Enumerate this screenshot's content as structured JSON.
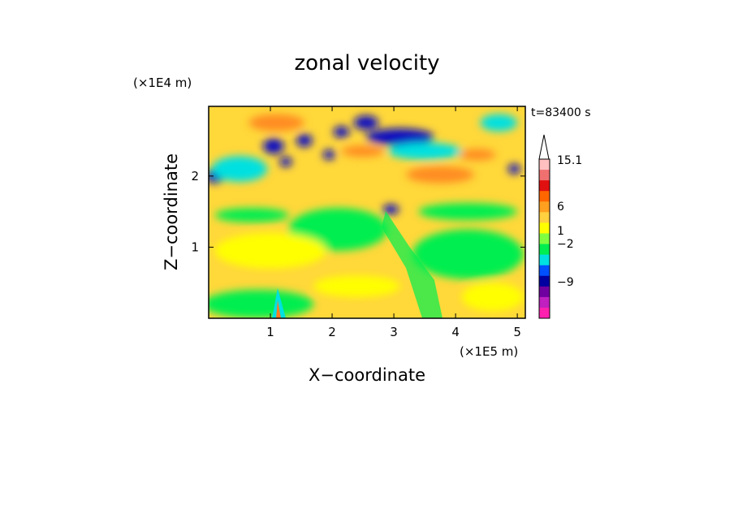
{
  "chart_data": {
    "type": "heatmap",
    "title": "zonal velocity",
    "time_label": "t=83400 s",
    "xlabel": "X−coordinate",
    "ylabel": "Z−coordinate",
    "x_unit": "(×1E5 m)",
    "y_unit": "(×1E4 m)",
    "x_ticks": [
      "1",
      "2",
      "3",
      "4",
      "5"
    ],
    "y_ticks": [
      "1",
      "2"
    ],
    "x_tick_values": [
      1,
      2,
      3,
      4,
      5
    ],
    "y_tick_values": [
      1,
      2
    ],
    "xlim": [
      0,
      5.13
    ],
    "ylim": [
      0,
      2.98
    ],
    "colorbar": {
      "labels": [
        "15.1",
        "6",
        "1",
        "−2",
        "−9"
      ],
      "colors_top_to_bottom": [
        "#ffc0c0",
        "#f07070",
        "#e01010",
        "#ff6600",
        "#ffa020",
        "#ffd040",
        "#ffff00",
        "#80ff40",
        "#00ee50",
        "#00e0e0",
        "#0050ff",
        "#0000a0",
        "#7000a0",
        "#c020c0",
        "#ff20b0"
      ]
    },
    "features": [
      {
        "color": "#1010c0",
        "x": 3.1,
        "y": 2.55,
        "rx": 0.55,
        "rz": 0.12
      },
      {
        "color": "#1010c0",
        "x": 1.05,
        "y": 2.42,
        "rx": 0.17,
        "rz": 0.11
      },
      {
        "color": "#1010c0",
        "x": 1.55,
        "y": 2.5,
        "rx": 0.13,
        "rz": 0.09
      },
      {
        "color": "#1010c0",
        "x": 1.25,
        "y": 2.2,
        "rx": 0.1,
        "rz": 0.07
      },
      {
        "color": "#1010c0",
        "x": 1.95,
        "y": 2.3,
        "rx": 0.1,
        "rz": 0.07
      },
      {
        "color": "#1010c0",
        "x": 2.55,
        "y": 2.75,
        "rx": 0.2,
        "rz": 0.1
      },
      {
        "color": "#1010c0",
        "x": 2.15,
        "y": 2.62,
        "rx": 0.13,
        "rz": 0.08
      },
      {
        "color": "#1010c0",
        "x": 0.1,
        "y": 2.0,
        "rx": 0.16,
        "rz": 0.1
      },
      {
        "color": "#1010c0",
        "x": 2.95,
        "y": 1.53,
        "rx": 0.13,
        "rz": 0.07
      },
      {
        "color": "#1010c0",
        "x": 4.95,
        "y": 2.1,
        "rx": 0.1,
        "rz": 0.07
      },
      {
        "color": "#ff8c20",
        "x": 1.1,
        "y": 2.75,
        "rx": 0.45,
        "rz": 0.12
      },
      {
        "color": "#ff8c20",
        "x": 3.75,
        "y": 2.02,
        "rx": 0.55,
        "rz": 0.12
      },
      {
        "color": "#ff8c20",
        "x": 2.5,
        "y": 2.35,
        "rx": 0.35,
        "rz": 0.08
      },
      {
        "color": "#ff8c20",
        "x": 4.35,
        "y": 2.3,
        "rx": 0.3,
        "rz": 0.08
      },
      {
        "color": "#00e0e0",
        "x": 0.5,
        "y": 2.1,
        "rx": 0.45,
        "rz": 0.18
      },
      {
        "color": "#00e0e0",
        "x": 4.7,
        "y": 2.75,
        "rx": 0.3,
        "rz": 0.12
      },
      {
        "color": "#00e0e0",
        "x": 3.5,
        "y": 2.35,
        "rx": 0.6,
        "rz": 0.12
      },
      {
        "color": "#00ee50",
        "x": 2.1,
        "y": 1.25,
        "rx": 0.8,
        "rz": 0.3
      },
      {
        "color": "#00ee50",
        "x": 4.2,
        "y": 0.9,
        "rx": 0.9,
        "rz": 0.35
      },
      {
        "color": "#00ee50",
        "x": 0.8,
        "y": 0.2,
        "rx": 0.9,
        "rz": 0.2
      },
      {
        "color": "#00ee50",
        "x": 0.7,
        "y": 1.45,
        "rx": 0.6,
        "rz": 0.1
      },
      {
        "color": "#00ee50",
        "x": 4.2,
        "y": 1.5,
        "rx": 0.8,
        "rz": 0.12
      },
      {
        "color": "#ffff00",
        "x": 1.0,
        "y": 0.95,
        "rx": 0.9,
        "rz": 0.25
      },
      {
        "color": "#ffff00",
        "x": 4.6,
        "y": 0.3,
        "rx": 0.5,
        "rz": 0.2
      },
      {
        "color": "#ffff00",
        "x": 2.4,
        "y": 0.45,
        "rx": 0.7,
        "rz": 0.15
      }
    ]
  }
}
